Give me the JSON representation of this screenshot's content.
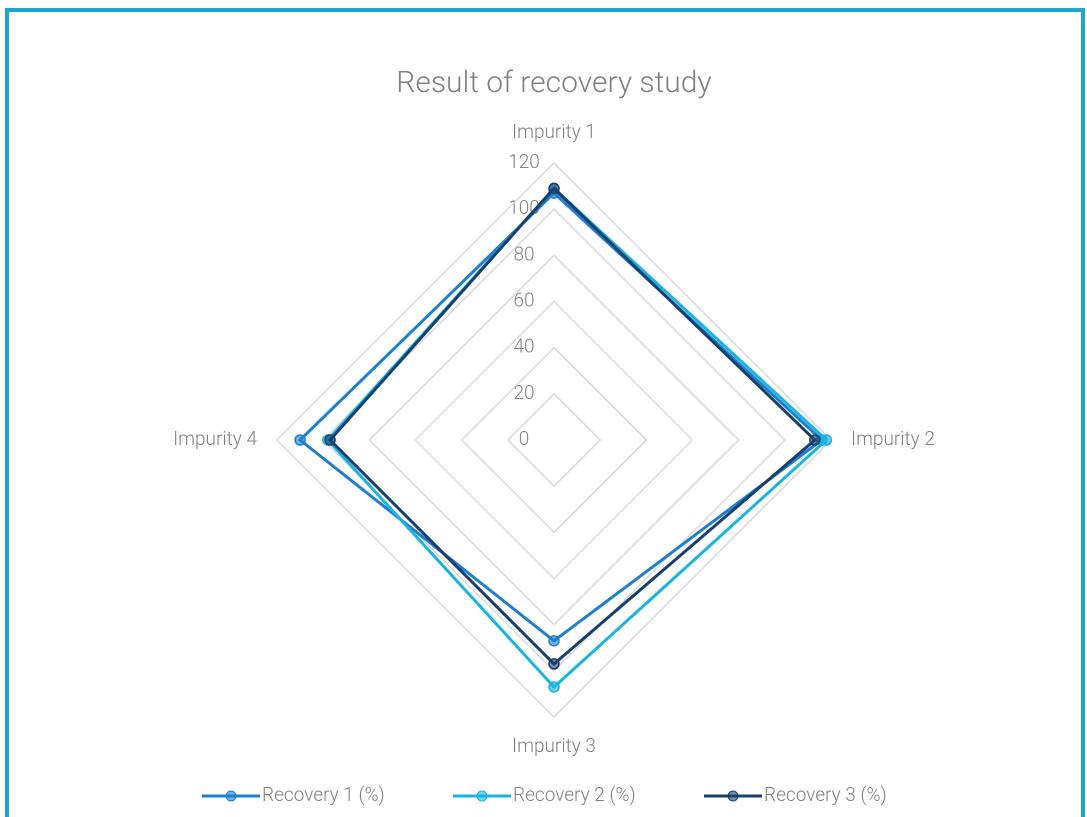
{
  "chart_data": {
    "type": "radar",
    "title": "Result of recovery study",
    "categories": [
      "Impurity 1",
      "Impurity 2",
      "Impurity 3",
      "Impurity 4"
    ],
    "series": [
      {
        "name": "Recovery 1 (%)",
        "color": "#1e7fd0",
        "values": [
          107,
          116,
          87,
          110
        ]
      },
      {
        "name": "Recovery 2 (%)",
        "color": "#19b4e0",
        "values": [
          109,
          118,
          107,
          98
        ]
      },
      {
        "name": "Recovery 3 (%)",
        "color": "#183f6e",
        "values": [
          109,
          113,
          97,
          97
        ]
      }
    ],
    "rlim": [
      0,
      120
    ],
    "rticks": [
      0,
      20,
      40,
      60,
      80,
      100,
      120
    ],
    "grid": true,
    "legend": "bottom"
  }
}
